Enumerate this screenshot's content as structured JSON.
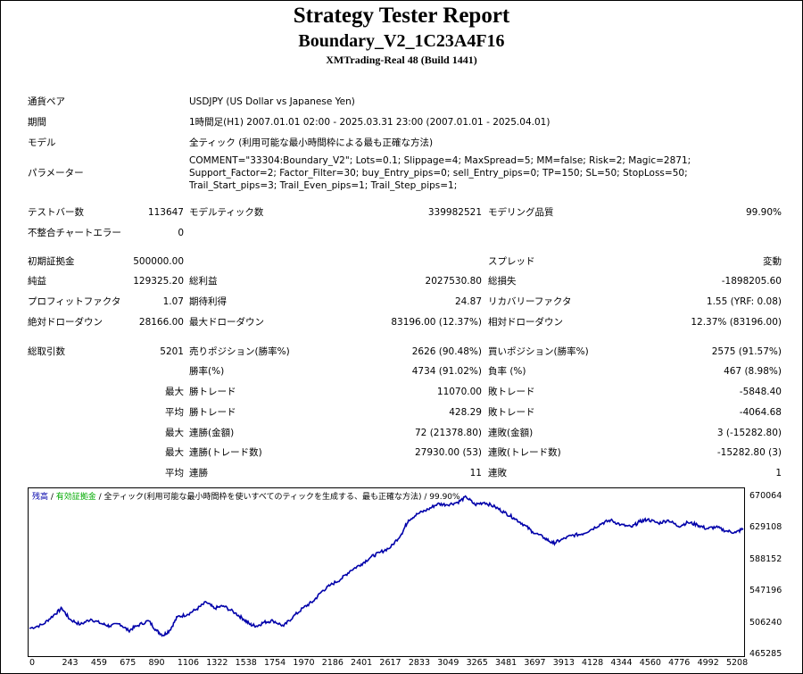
{
  "report": {
    "title": "Strategy Tester Report",
    "ea_name": "Boundary_V2_1C23A4F16",
    "server": "XMTrading-Real 48 (Build 1441)"
  },
  "info": {
    "symbol_label": "通貨ペア",
    "symbol_value": "USDJPY (US Dollar vs Japanese Yen)",
    "period_label": "期間",
    "period_value": "1時間足(H1) 2007.01.01 02:00 - 2025.03.31 23:00 (2007.01.01 - 2025.04.01)",
    "model_label": "モデル",
    "model_value": "全ティック (利用可能な最小時間枠による最も正確な方法)",
    "params_label": "パラメーター",
    "params_value": "COMMENT=\"33304:Boundary_V2\"; Lots=0.1; Slippage=4; MaxSpread=5; MM=false; Risk=2; Magic=2871; Support_Factor=2; Factor_Filter=30; buy_Entry_pips=0; sell_Entry_pips=0; TP=150; SL=50; StopLoss=50; Trail_Start_pips=3; Trail_Even_pips=1; Trail_Step_pips=1;"
  },
  "stats": {
    "bars_label": "テストバー数",
    "bars_value": "113647",
    "ticks_label": "モデルティック数",
    "ticks_value": "339982521",
    "quality_label": "モデリング品質",
    "quality_value": "99.90%",
    "errors_label": "不整合チャートエラー",
    "errors_value": "0",
    "deposit_label": "初期証拠金",
    "deposit_value": "500000.00",
    "spread_label": "スプレッド",
    "spread_value": "変動",
    "net_label": "純益",
    "net_value": "129325.20",
    "gross_profit_label": "総利益",
    "gross_profit_value": "2027530.80",
    "gross_loss_label": "総損失",
    "gross_loss_value": "-1898205.60",
    "pf_label": "プロフィットファクタ",
    "pf_value": "1.07",
    "payoff_label": "期待利得",
    "payoff_value": "24.87",
    "rf_label": "リカバリーファクタ",
    "rf_value": "1.55 (YRF: 0.08)",
    "abs_dd_label": "絶対ドローダウン",
    "abs_dd_value": "28166.00",
    "max_dd_label": "最大ドローダウン",
    "max_dd_value": "83196.00 (12.37%)",
    "rel_dd_label": "相対ドローダウン",
    "rel_dd_value": "12.37% (83196.00)",
    "trades_label": "総取引数",
    "trades_value": "5201",
    "short_label": "売りポジション(勝率%)",
    "short_value": "2626 (90.48%)",
    "long_label": "買いポジション(勝率%)",
    "long_value": "2575 (91.57%)",
    "win_label": "勝率(%)",
    "win_value": "4734 (91.02%)",
    "loss_label": "負率 (%)",
    "loss_value": "467 (8.98%)",
    "max_label": "最大",
    "avg_label": "平均",
    "largest_win_label": "勝トレード",
    "largest_win_value": "11070.00",
    "largest_loss_label": "敗トレード",
    "largest_loss_value": "-5848.40",
    "avg_win_label": "勝トレード",
    "avg_win_value": "428.29",
    "avg_loss_label": "敗トレード",
    "avg_loss_value": "-4064.68",
    "max_consec_wins_money_label": "連勝(金額)",
    "max_consec_wins_money_value": "72 (21378.80)",
    "max_consec_losses_money_label": "連敗(金額)",
    "max_consec_losses_money_value": "3 (-15282.80)",
    "max_consec_profit_label": "連勝(トレード数)",
    "max_consec_profit_value": "27930.00 (53)",
    "max_consec_loss_label": "連敗(トレード数)",
    "max_consec_loss_value": "-15282.80 (3)",
    "avg_consec_wins_label": "連勝",
    "avg_consec_wins_value": "11",
    "avg_consec_losses_label": "連敗",
    "avg_consec_losses_value": "1"
  },
  "chart_data": {
    "type": "line",
    "legend": {
      "balance": "残高",
      "sep": " / ",
      "margin": "有効証拠金",
      "model": " / 全ティック(利用可能な最小時間枠を使いすべてのティックを生成する、最も正確な方法)",
      "quality": " / 99.90%"
    },
    "colors": {
      "balance": "#0000aa",
      "balance_legend": "#0000aa",
      "margin_legend": "#00aa00"
    },
    "ylim": [
      465285,
      680000
    ],
    "yticks": [
      "670064",
      "629108",
      "588152",
      "547196",
      "506240",
      "465285"
    ],
    "xlim": [
      0,
      5335
    ],
    "xticks": [
      "0",
      "243",
      "459",
      "675",
      "890",
      "1106",
      "1322",
      "1538",
      "1754",
      "1970",
      "2186",
      "2401",
      "2617",
      "2833",
      "3049",
      "3265",
      "3481",
      "3697",
      "3913",
      "4128",
      "4344",
      "4560",
      "4776",
      "4992",
      "5208"
    ],
    "series": [
      {
        "name": "残高",
        "x": [
          0,
          100,
          180,
          243,
          300,
          380,
          459,
          540,
          600,
          675,
          740,
          800,
          890,
          950,
          1000,
          1050,
          1106,
          1180,
          1250,
          1322,
          1380,
          1450,
          1538,
          1600,
          1650,
          1700,
          1754,
          1820,
          1900,
          1970,
          2050,
          2120,
          2186,
          2250,
          2330,
          2401,
          2480,
          2550,
          2617,
          2700,
          2780,
          2833,
          2900,
          2980,
          3049,
          3120,
          3200,
          3265,
          3330,
          3400,
          3481,
          3550,
          3620,
          3697,
          3760,
          3850,
          3913,
          3970,
          4050,
          4128,
          4200,
          4280,
          4344,
          4420,
          4500,
          4560,
          4620,
          4700,
          4776,
          4850,
          4920,
          4992,
          5060,
          5130,
          5208,
          5280,
          5335
        ],
        "y": [
          500000,
          505000,
          517000,
          526000,
          512000,
          505000,
          512000,
          506000,
          503000,
          506000,
          497000,
          503000,
          510000,
          497000,
          491000,
          498000,
          515000,
          518000,
          525000,
          534000,
          526000,
          529000,
          520000,
          512000,
          505000,
          503000,
          508000,
          510000,
          503000,
          515000,
          527000,
          535000,
          548000,
          556000,
          564000,
          575000,
          583000,
          592000,
          598000,
          605000,
          622000,
          640000,
          648000,
          654000,
          661000,
          660000,
          663000,
          670000,
          660000,
          663000,
          657000,
          650000,
          643000,
          634000,
          625000,
          617000,
          610000,
          614000,
          620000,
          622000,
          628000,
          636000,
          640000,
          634000,
          631000,
          638000,
          641000,
          636000,
          640000,
          632000,
          637000,
          634000,
          629000,
          631000,
          626000,
          624000,
          629000
        ]
      }
    ]
  }
}
